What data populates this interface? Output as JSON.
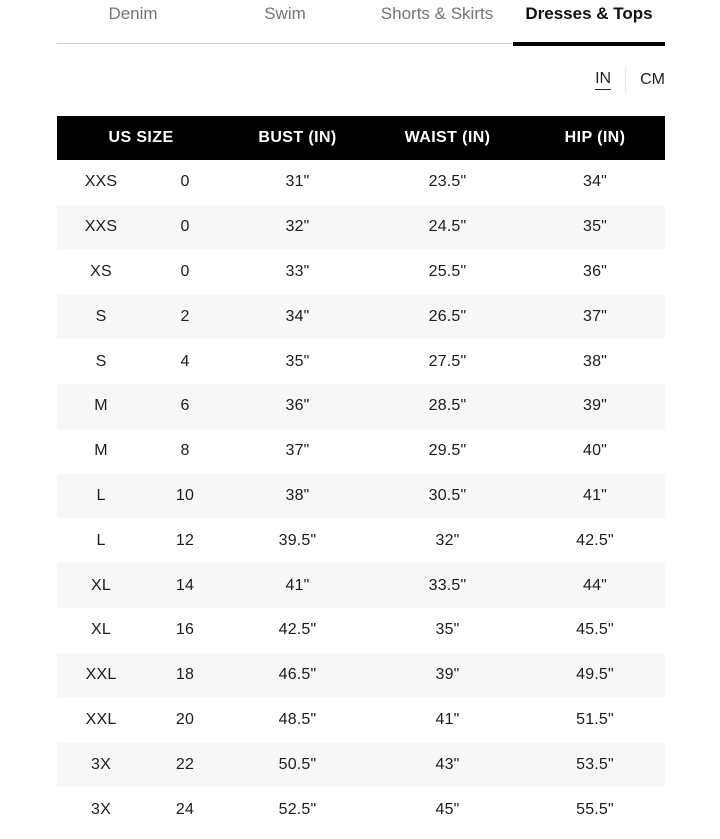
{
  "tabs": {
    "items": [
      {
        "label": "Denim",
        "active": false
      },
      {
        "label": "Swim",
        "active": false
      },
      {
        "label": "Shorts & Skirts",
        "active": false
      },
      {
        "label": "Dresses & Tops",
        "active": true
      }
    ]
  },
  "unit_toggle": {
    "in_label": "IN",
    "cm_label": "CM",
    "selected": "IN"
  },
  "table": {
    "headers": [
      "US SIZE",
      "BUST (IN)",
      "WAIST (IN)",
      "HIP (IN)"
    ],
    "rows": [
      [
        "XXS",
        "0",
        "31\"",
        "23.5\"",
        "34\""
      ],
      [
        "XXS",
        "0",
        "32\"",
        "24.5\"",
        "35\""
      ],
      [
        "XS",
        "0",
        "33\"",
        "25.5\"",
        "36\""
      ],
      [
        "S",
        "2",
        "34\"",
        "26.5\"",
        "37\""
      ],
      [
        "S",
        "4",
        "35\"",
        "27.5\"",
        "38\""
      ],
      [
        "M",
        "6",
        "36\"",
        "28.5\"",
        "39\""
      ],
      [
        "M",
        "8",
        "37\"",
        "29.5\"",
        "40\""
      ],
      [
        "L",
        "10",
        "38\"",
        "30.5\"",
        "41\""
      ],
      [
        "L",
        "12",
        "39.5\"",
        "32\"",
        "42.5\""
      ],
      [
        "XL",
        "14",
        "41\"",
        "33.5\"",
        "44\""
      ],
      [
        "XL",
        "16",
        "42.5\"",
        "35\"",
        "45.5\""
      ],
      [
        "XXL",
        "18",
        "46.5\"",
        "39\"",
        "49.5\""
      ],
      [
        "XXL",
        "20",
        "48.5\"",
        "41\"",
        "51.5\""
      ],
      [
        "3X",
        "22",
        "50.5\"",
        "43\"",
        "53.5\""
      ],
      [
        "3X",
        "24",
        "52.5\"",
        "45\"",
        "55.5\""
      ]
    ]
  },
  "colors": {
    "header_bg": "#000000",
    "header_text": "#ffffff",
    "zebra_row": "#f7f7f7",
    "inactive_tab_text": "#73757a",
    "active_tab_text": "#111111",
    "tab_rule": "#cfcfcf",
    "active_tab_underline": "#000000"
  }
}
